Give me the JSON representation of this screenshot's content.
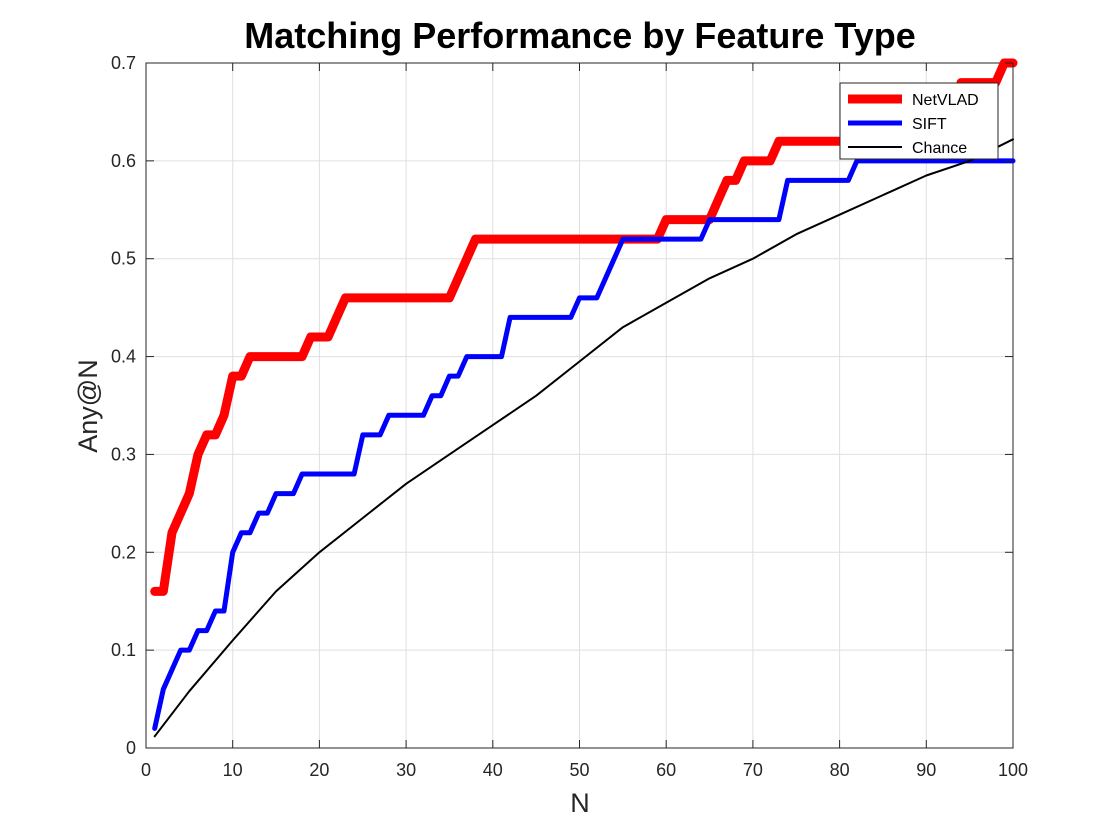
{
  "chart_data": {
    "type": "line",
    "title": "Matching Performance by Feature Type",
    "xlabel": "N",
    "ylabel": "Any@N",
    "xlim": [
      0,
      100
    ],
    "ylim": [
      0,
      0.7
    ],
    "xticks": [
      0,
      10,
      20,
      30,
      40,
      50,
      60,
      70,
      80,
      90,
      100
    ],
    "yticks": [
      0,
      0.1,
      0.2,
      0.3,
      0.4,
      0.5,
      0.6,
      0.7
    ],
    "grid": true,
    "legend_position": "top-right",
    "series": [
      {
        "name": "NetVLAD",
        "color": "#ff0000",
        "x": [
          1,
          2,
          3,
          4,
          5,
          6,
          7,
          8,
          9,
          10,
          11,
          12,
          13,
          14,
          15,
          16,
          17,
          18,
          19,
          20,
          21,
          22,
          23,
          24,
          25,
          26,
          27,
          28,
          29,
          30,
          31,
          32,
          33,
          34,
          35,
          36,
          37,
          38,
          39,
          40,
          41,
          42,
          43,
          44,
          45,
          46,
          47,
          48,
          49,
          50,
          51,
          52,
          53,
          54,
          55,
          56,
          57,
          58,
          59,
          60,
          61,
          62,
          63,
          64,
          65,
          66,
          67,
          68,
          69,
          70,
          71,
          72,
          73,
          74,
          75,
          76,
          77,
          78,
          79,
          80,
          81,
          82,
          83,
          84,
          85,
          86,
          87,
          88,
          89,
          90,
          91,
          92,
          93,
          94,
          95,
          96,
          97,
          98,
          99,
          100
        ],
        "y": [
          0.16,
          0.16,
          0.22,
          0.24,
          0.26,
          0.3,
          0.32,
          0.32,
          0.34,
          0.38,
          0.38,
          0.4,
          0.4,
          0.4,
          0.4,
          0.4,
          0.4,
          0.4,
          0.42,
          0.42,
          0.42,
          0.44,
          0.46,
          0.46,
          0.46,
          0.46,
          0.46,
          0.46,
          0.46,
          0.46,
          0.46,
          0.46,
          0.46,
          0.46,
          0.46,
          0.48,
          0.5,
          0.52,
          0.52,
          0.52,
          0.52,
          0.52,
          0.52,
          0.52,
          0.52,
          0.52,
          0.52,
          0.52,
          0.52,
          0.52,
          0.52,
          0.52,
          0.52,
          0.52,
          0.52,
          0.52,
          0.52,
          0.52,
          0.52,
          0.54,
          0.54,
          0.54,
          0.54,
          0.54,
          0.54,
          0.56,
          0.58,
          0.58,
          0.6,
          0.6,
          0.6,
          0.6,
          0.62,
          0.62,
          0.62,
          0.62,
          0.62,
          0.62,
          0.62,
          0.62,
          0.62,
          0.62,
          0.62,
          0.62,
          0.62,
          0.62,
          0.62,
          0.62,
          0.62,
          0.62,
          0.62,
          0.62,
          0.62,
          0.68,
          0.68,
          0.68,
          0.68,
          0.68,
          0.7,
          0.7
        ]
      },
      {
        "name": "SIFT",
        "color": "#0000ff",
        "x": [
          1,
          2,
          3,
          4,
          5,
          6,
          7,
          8,
          9,
          10,
          11,
          12,
          13,
          14,
          15,
          16,
          17,
          18,
          19,
          20,
          21,
          22,
          23,
          24,
          25,
          26,
          27,
          28,
          29,
          30,
          31,
          32,
          33,
          34,
          35,
          36,
          37,
          38,
          39,
          40,
          41,
          42,
          43,
          44,
          45,
          46,
          47,
          48,
          49,
          50,
          51,
          52,
          53,
          54,
          55,
          56,
          57,
          58,
          59,
          60,
          61,
          62,
          63,
          64,
          65,
          66,
          67,
          68,
          69,
          70,
          71,
          72,
          73,
          74,
          75,
          76,
          77,
          78,
          79,
          80,
          81,
          82,
          83,
          84,
          85,
          86,
          87,
          88,
          89,
          90,
          91,
          92,
          93,
          94,
          95,
          96,
          97,
          98,
          99,
          100
        ],
        "y": [
          0.02,
          0.06,
          0.08,
          0.1,
          0.1,
          0.12,
          0.12,
          0.14,
          0.14,
          0.2,
          0.22,
          0.22,
          0.24,
          0.24,
          0.26,
          0.26,
          0.26,
          0.28,
          0.28,
          0.28,
          0.28,
          0.28,
          0.28,
          0.28,
          0.32,
          0.32,
          0.32,
          0.34,
          0.34,
          0.34,
          0.34,
          0.34,
          0.36,
          0.36,
          0.38,
          0.38,
          0.4,
          0.4,
          0.4,
          0.4,
          0.4,
          0.44,
          0.44,
          0.44,
          0.44,
          0.44,
          0.44,
          0.44,
          0.44,
          0.46,
          0.46,
          0.46,
          0.48,
          0.5,
          0.52,
          0.52,
          0.52,
          0.52,
          0.52,
          0.52,
          0.52,
          0.52,
          0.52,
          0.52,
          0.54,
          0.54,
          0.54,
          0.54,
          0.54,
          0.54,
          0.54,
          0.54,
          0.54,
          0.58,
          0.58,
          0.58,
          0.58,
          0.58,
          0.58,
          0.58,
          0.58,
          0.6,
          0.6,
          0.6,
          0.6,
          0.6,
          0.6,
          0.6,
          0.6,
          0.6,
          0.6,
          0.6,
          0.6,
          0.6,
          0.6,
          0.6,
          0.6,
          0.6,
          0.6,
          0.6
        ]
      },
      {
        "name": "Chance",
        "color": "#000000",
        "x": [
          1,
          5,
          10,
          15,
          20,
          25,
          30,
          35,
          40,
          45,
          50,
          55,
          60,
          65,
          70,
          75,
          80,
          85,
          90,
          95,
          100
        ],
        "y": [
          0.012,
          0.058,
          0.11,
          0.16,
          0.2,
          0.235,
          0.27,
          0.3,
          0.33,
          0.36,
          0.395,
          0.43,
          0.455,
          0.48,
          0.5,
          0.525,
          0.545,
          0.565,
          0.585,
          0.6,
          0.622
        ]
      }
    ]
  }
}
